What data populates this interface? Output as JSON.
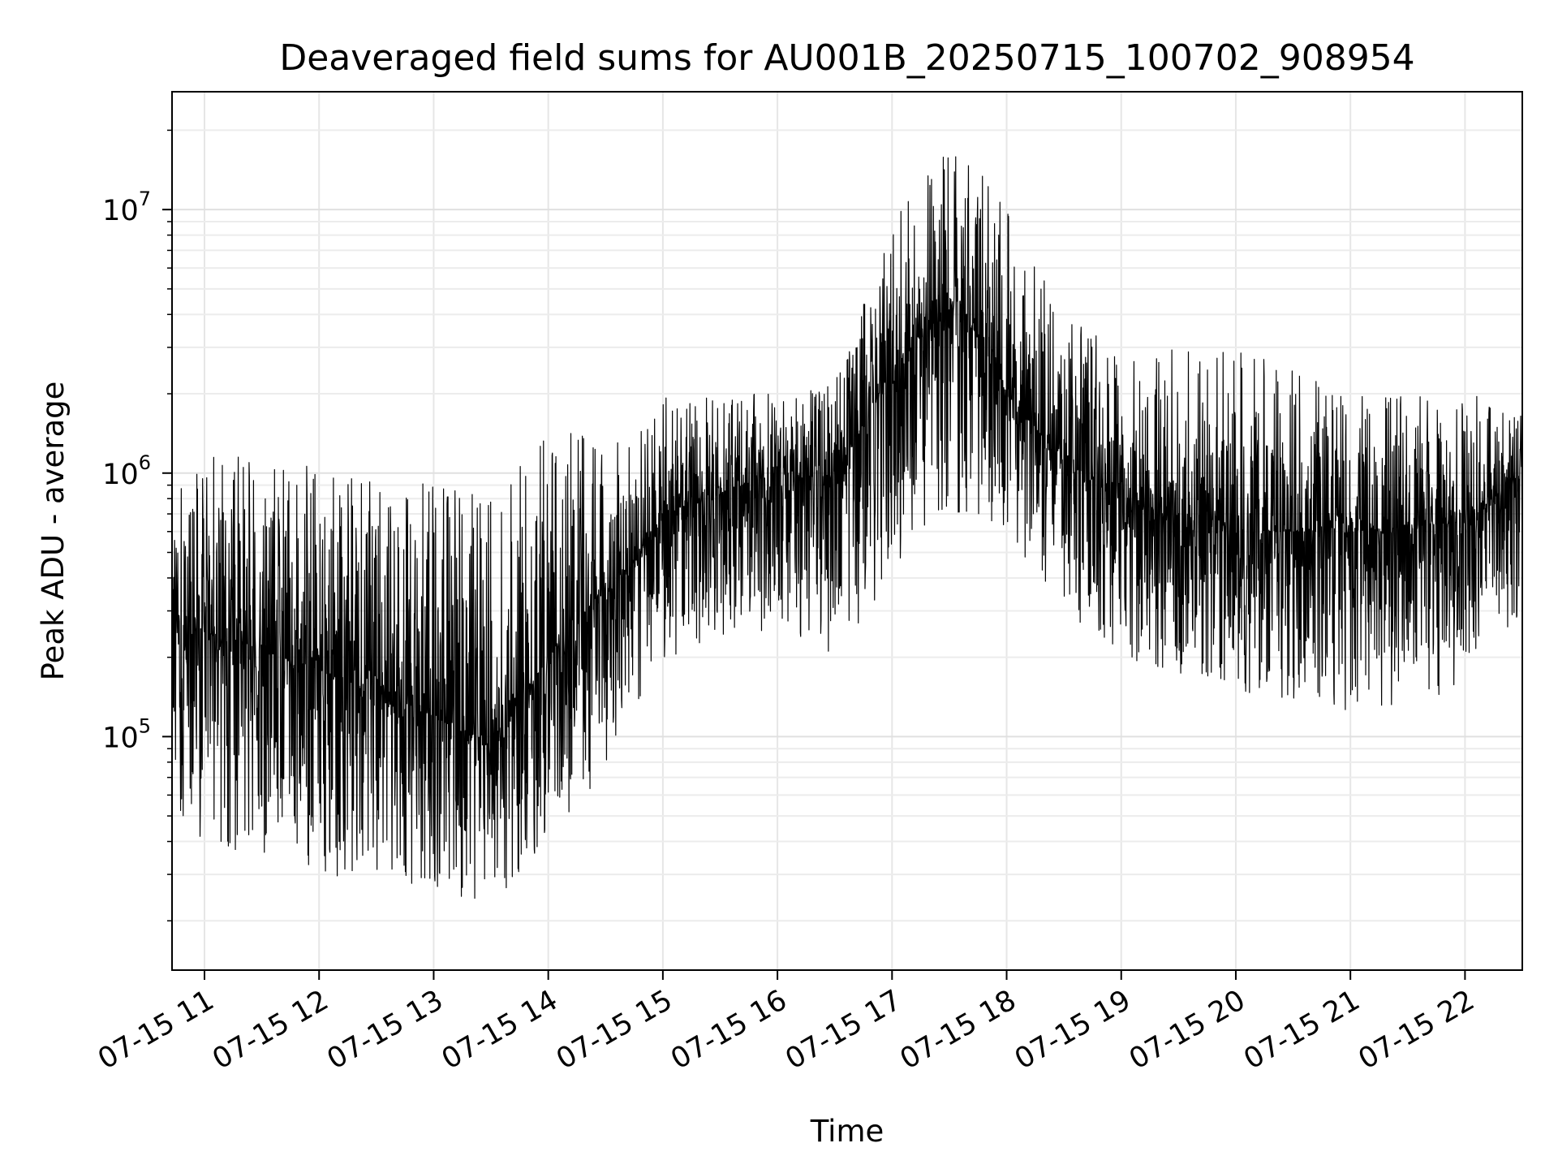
{
  "chart_data": {
    "type": "line",
    "title": "Deaveraged field sums for AU001B_20250715_100702_908954",
    "xlabel": "Time",
    "ylabel": "Peak ADU - average",
    "yscale": "log",
    "ylim": [
      13000,
      28000000
    ],
    "grid": true,
    "line_color": "#000000",
    "x_ticks": [
      "07-15 11",
      "07-15 12",
      "07-15 13",
      "07-15 14",
      "07-15 15",
      "07-15 16",
      "07-15 17",
      "07-15 18",
      "07-15 19",
      "07-15 20",
      "07-15 21",
      "07-15 22"
    ],
    "y_ticks": [
      {
        "value": 100000,
        "base": "10",
        "exp": "5"
      },
      {
        "value": 1000000,
        "base": "10",
        "exp": "6"
      },
      {
        "value": 10000000,
        "base": "10",
        "exp": "7"
      }
    ],
    "x_range": [
      "2025-07-15 10:43",
      "2025-07-15 22:30"
    ],
    "sample_interval_seconds": 10,
    "envelope_note_hourly_band": [
      {
        "time": "2025-07-15 10:43",
        "low": 50000,
        "typical": 300000,
        "high": 1200000
      },
      {
        "time": "2025-07-15 11:00",
        "low": 40000,
        "typical": 250000,
        "high": 1200000
      },
      {
        "time": "2025-07-15 12:00",
        "low": 30000,
        "typical": 180000,
        "high": 1100000
      },
      {
        "time": "2025-07-15 13:00",
        "low": 25000,
        "typical": 120000,
        "high": 1000000
      },
      {
        "time": "2025-07-15 13:30",
        "low": 23000,
        "typical": 90000,
        "high": 800000
      },
      {
        "time": "2025-07-15 14:00",
        "low": 40000,
        "typical": 200000,
        "high": 1500000
      },
      {
        "time": "2025-07-15 14:45",
        "low": 100000,
        "typical": 450000,
        "high": 1300000
      },
      {
        "time": "2025-07-15 15:00",
        "low": 200000,
        "typical": 700000,
        "high": 2000000
      },
      {
        "time": "2025-07-15 16:00",
        "low": 250000,
        "typical": 1000000,
        "high": 2000000
      },
      {
        "time": "2025-07-15 16:30",
        "low": 200000,
        "typical": 950000,
        "high": 2200000
      },
      {
        "time": "2025-07-15 17:00",
        "low": 400000,
        "typical": 2500000,
        "high": 9000000
      },
      {
        "time": "2025-07-15 17:35",
        "low": 700000,
        "typical": 4500000,
        "high": 19000000
      },
      {
        "time": "2025-07-15 18:00",
        "low": 600000,
        "typical": 2000000,
        "high": 10000000
      },
      {
        "time": "2025-07-15 18:30",
        "low": 300000,
        "typical": 1100000,
        "high": 4000000
      },
      {
        "time": "2025-07-15 19:00",
        "low": 200000,
        "typical": 800000,
        "high": 3000000
      },
      {
        "time": "2025-07-15 20:00",
        "low": 150000,
        "typical": 600000,
        "high": 3000000
      },
      {
        "time": "2025-07-15 21:00",
        "low": 120000,
        "typical": 600000,
        "high": 2000000
      },
      {
        "time": "2025-07-15 22:00",
        "low": 150000,
        "typical": 650000,
        "high": 2000000
      },
      {
        "time": "2025-07-15 22:30",
        "low": 300000,
        "typical": 1000000,
        "high": 1800000
      }
    ]
  }
}
